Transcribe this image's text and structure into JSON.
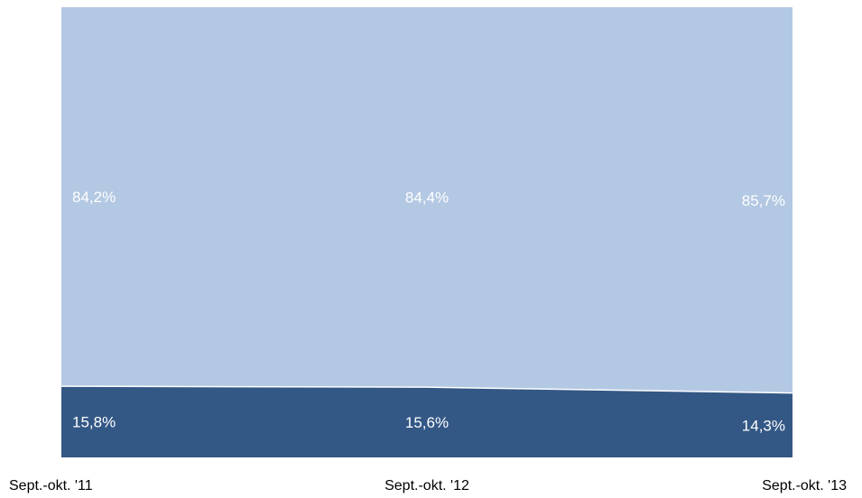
{
  "chart_data": {
    "type": "area",
    "stacked": true,
    "percent": true,
    "categories": [
      "Sept.-okt. '11",
      "Sept.-okt. '12",
      "Sept.-okt. '13"
    ],
    "series": [
      {
        "values": [
          15.8,
          15.6,
          14.3
        ],
        "labels": [
          "15,8%",
          "15,6%",
          "14,3%"
        ],
        "color": "#345886"
      },
      {
        "values": [
          84.2,
          84.4,
          85.7
        ],
        "labels": [
          "84,2%",
          "84,4%",
          "85,7%"
        ],
        "color": "#b3c8e3"
      }
    ],
    "ylim": [
      0,
      100
    ],
    "grid": false,
    "legend": "none",
    "label_color": "#ffffff",
    "tick_label_color": "#000000"
  }
}
